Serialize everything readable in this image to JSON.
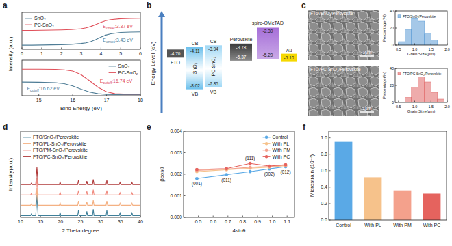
{
  "panel_labels": [
    "a",
    "b",
    "c",
    "d",
    "e",
    "f"
  ],
  "chart_data": [
    {
      "type": "line",
      "y_label": "Intensity (a.u.)",
      "xlim": [
        0,
        6
      ],
      "xticks": [
        0,
        1,
        2,
        3,
        4,
        5,
        6
      ],
      "ylim": [
        0,
        11
      ],
      "tick_labels": "x",
      "legend": "upper left",
      "x": [
        0,
        0.5,
        1,
        1.5,
        2,
        2.5,
        3,
        3.25,
        3.5,
        3.75,
        4,
        4.25,
        4.5,
        5,
        5.5,
        6
      ],
      "series": [
        {
          "name": "SnO₂",
          "color": "#4f7d96",
          "values": [
            1.2,
            1.2,
            1.25,
            1.3,
            1.35,
            1.45,
            1.7,
            1.9,
            2.3,
            2.9,
            3.6,
            4.2,
            4.6,
            5.0,
            5.1,
            5.15
          ]
        },
        {
          "name": "PC-SnO₂",
          "color": "#e0505a",
          "values": [
            5.6,
            5.6,
            5.65,
            5.7,
            5.75,
            5.85,
            6.1,
            6.35,
            6.8,
            7.4,
            8.0,
            8.5,
            8.8,
            9.1,
            9.2,
            9.25
          ]
        }
      ],
      "annotations": [
        {
          "main": "E",
          "sub": "onset",
          "rest": ":3.37 eV",
          "color": "#e0505a"
        },
        {
          "main": "E",
          "sub": "onset",
          "rest": ":3.43 eV",
          "color": "#4f7d96"
        }
      ]
    },
    {
      "type": "line",
      "x_label": "Bind Energy (eV)",
      "xlim": [
        14.5,
        18
      ],
      "xticks": [
        15,
        16,
        17,
        18
      ],
      "ylim": [
        0,
        11
      ],
      "tick_labels": "x",
      "legend": "upper right",
      "x": [
        14.5,
        15,
        15.5,
        15.75,
        16,
        16.25,
        16.5,
        16.75,
        17,
        17.25,
        17.5,
        18
      ],
      "series": [
        {
          "name": "SnO₂",
          "color": "#4f7d96",
          "values": [
            4.2,
            4.15,
            4.0,
            3.7,
            3.0,
            2.0,
            1.1,
            0.6,
            0.4,
            0.35,
            0.35,
            0.35
          ]
        },
        {
          "name": "PC-SnO₂",
          "color": "#e0505a",
          "values": [
            8.2,
            8.2,
            8.15,
            8.0,
            7.6,
            6.5,
            4.6,
            2.6,
            1.2,
            0.6,
            0.5,
            0.5
          ]
        }
      ],
      "annotations": [
        {
          "main": "E",
          "sub": "cutoff",
          "rest": ":16.74 eV",
          "color": "#e0505a"
        },
        {
          "main": "E",
          "sub": "cutoff",
          "rest": ":16.62 eV",
          "color": "#4f7d96"
        }
      ]
    },
    {
      "type": "histogram",
      "title": "FTO/SnO₂/Perovskite",
      "x_label": "Grain Size(μm)",
      "y_label": "Percentage(%)",
      "color": "#5b9bd5",
      "bins": [
        0.5,
        0.7,
        0.9,
        1.1,
        1.3,
        1.5,
        1.7
      ],
      "values": [
        4,
        18,
        31,
        28,
        13,
        6
      ],
      "xlim": [
        0.4,
        2.0
      ],
      "xticks": [
        0.5,
        {
          "value": 1,
          "label": "1.0"
        },
        1.5,
        {
          "value": 2,
          "label": "2.0"
        }
      ],
      "ylim": [
        0,
        40
      ],
      "yticks": [
        0,
        20,
        40
      ]
    },
    {
      "type": "histogram",
      "title": "FTO/PC-SnO₂/Perovskite",
      "x_label": "Grain Size(μm)",
      "y_label": "Percentage(%)",
      "color": "#e06666",
      "bins": [
        0.7,
        0.9,
        1.1,
        1.3,
        1.5,
        1.7,
        1.9
      ],
      "values": [
        6,
        18,
        30,
        24,
        12,
        4
      ],
      "xlim": [
        0.4,
        2.0
      ],
      "xticks": [
        0.5,
        {
          "value": 1,
          "label": "1.0"
        },
        1.5,
        {
          "value": 2,
          "label": "2.0"
        }
      ],
      "ylim": [
        0,
        40
      ],
      "yticks": [
        0,
        20,
        40
      ]
    },
    {
      "type": "line",
      "x_label": "2 Theta degree",
      "y_label": "Intensity(a.u.)",
      "xlim": [
        10,
        40
      ],
      "xticks": [
        10,
        15,
        20,
        25,
        30,
        35,
        40
      ],
      "ylim": [
        0,
        100
      ],
      "tick_labels": "x",
      "legend": "upper left",
      "x": [
        10,
        12.5,
        12.7,
        12.9,
        13.8,
        14.1,
        14.4,
        19.7,
        19.9,
        20.1,
        24.3,
        24.5,
        24.7,
        26.4,
        26.6,
        26.8,
        28,
        28.2,
        28.4,
        31.4,
        31.6,
        31.8,
        34.7,
        34.9,
        35.1,
        37.7,
        37.9,
        38.1,
        40
      ],
      "series": [
        {
          "name": "FTO/SnO₂/Perovskite",
          "color": "#3f7f99",
          "values": [
            2,
            2,
            3.8,
            2,
            2,
            26,
            2,
            2,
            5.6,
            2,
            2,
            8,
            2,
            2,
            6.8,
            2,
            2,
            9.2,
            2,
            2,
            8,
            2,
            2,
            5,
            2,
            2,
            5,
            2,
            2
          ]
        },
        {
          "name": "FTO/PL-SnO₂/Perovskite",
          "color": "#f4b183",
          "values": [
            14,
            14,
            15.5,
            14,
            14,
            34,
            14,
            14,
            17,
            14,
            14,
            19,
            14,
            14,
            18,
            14,
            14,
            20,
            14,
            14,
            19,
            14,
            14,
            16.5,
            14,
            14,
            16.5,
            14,
            14
          ]
        },
        {
          "name": "FTO/PM-SnO₂/Perovskite",
          "color": "#f08a7e",
          "values": [
            26,
            26,
            27.5,
            26,
            26,
            46,
            26,
            26,
            29,
            26,
            26,
            31,
            26,
            26,
            30,
            26,
            26,
            32,
            26,
            26,
            31,
            26,
            26,
            28.5,
            26,
            26,
            28.5,
            26,
            26
          ]
        },
        {
          "name": "FTO/PC-SnO₂/Perovskite",
          "color": "#b03a3a",
          "values": [
            38,
            38,
            39.5,
            38,
            38,
            58,
            38,
            38,
            41,
            38,
            38,
            43,
            38,
            38,
            42,
            38,
            38,
            44,
            38,
            38,
            43,
            38,
            38,
            40.5,
            38,
            38,
            40.5,
            38,
            38
          ]
        }
      ]
    },
    {
      "type": "scatter",
      "x_label": "4sinθ",
      "y_label": "βcosθ",
      "xlim": [
        0.4,
        1.15
      ],
      "xticks": [
        0.5,
        0.6,
        0.7,
        0.8,
        0.9,
        {
          "value": 1,
          "label": "1.0"
        },
        1.1
      ],
      "ylim": [
        0,
        0.004
      ],
      "yticks": [
        {
          "value": 0,
          "label": "0.000"
        },
        0.001,
        0.002,
        0.003,
        0.004
      ],
      "legend": "upper right",
      "marker": "circle",
      "line_style": "solid",
      "x": [
        0.49,
        0.69,
        0.85,
        0.98,
        1.09
      ],
      "point_labels": [
        "(001)",
        "(011)",
        "(111)",
        "(002)",
        "(012)"
      ],
      "series": [
        {
          "name": "Control",
          "color": "#5aa9e6",
          "values": [
            0.0018,
            0.00198,
            0.00212,
            0.00225,
            0.00235
          ]
        },
        {
          "name": "With PL",
          "color": "#f6c28b",
          "values": [
            0.00212,
            0.00221,
            0.00228,
            0.00233,
            0.0024
          ]
        },
        {
          "name": "With PM",
          "color": "#f4a18c",
          "values": [
            0.00218,
            0.00224,
            0.00232,
            0.00236,
            0.00242
          ]
        },
        {
          "name": "With PC",
          "color": "#e5635e",
          "values": [
            0.00222,
            0.00226,
            0.0025,
            0.00238,
            0.00244
          ]
        }
      ]
    },
    {
      "type": "bar",
      "y_label": "Microstrain (10⁻³)",
      "categories": [
        "Control",
        "With PL",
        "With PM",
        "With PC"
      ],
      "values": [
        0.95,
        0.52,
        0.36,
        0.32
      ],
      "colors": [
        "#5aa9e6",
        "#f6c28b",
        "#f4a18c",
        "#e5635e"
      ],
      "ylim": [
        0,
        1.08
      ],
      "yticks": [
        {
          "value": 0,
          "label": "0.0"
        },
        0.2,
        0.4,
        0.6,
        0.8,
        {
          "value": 1,
          "label": "1.0"
        }
      ]
    }
  ],
  "energy_diagram": {
    "y_label": "Energy Level (eV)",
    "ylim": [
      -10.2,
      -1.0
    ],
    "electrode_left": {
      "name": "FTO",
      "level": {
        "value": -4.7,
        "label": "-4.70"
      },
      "color": "#555555"
    },
    "layers": [
      {
        "name": "SnO₂",
        "cb": {
          "value": -4.11,
          "label": "-4.11"
        },
        "vb": {
          "value": -8.02,
          "label": "-8.02"
        },
        "cb_label": "CB",
        "vb_label": "VB",
        "color": "#6cc0ec"
      },
      {
        "name": "PC-SnO₂",
        "cb": {
          "value": -3.94,
          "label": "-3.94"
        },
        "vb": {
          "value": -7.85,
          "label": "-7.85"
        },
        "cb_label": "CB",
        "vb_label": "VB",
        "color": "#9fd8f5"
      },
      {
        "name": "Perovskite",
        "cb": {
          "value": -3.78,
          "label": "-3.78"
        },
        "vb": {
          "value": -5.37,
          "label": "-5.37"
        },
        "color": "#3a3a3a"
      },
      {
        "name": "spiro-OMeTAD",
        "cb": {
          "value": -2.3,
          "label": "-2.30"
        },
        "vb": {
          "value": -5.2,
          "label": "-5.20"
        },
        "color": "#a66fd8"
      }
    ],
    "electrode_right": {
      "name": "Au",
      "level": {
        "value": -5.1,
        "label": "-5.10"
      },
      "color": "#f5d800"
    }
  },
  "sem_images": [
    {
      "label": "FTO/SnO₂/Perovskite",
      "scale_bar": "1μm"
    },
    {
      "label": "FTO/PC-SnO₂/Perovskite",
      "scale_bar": "1μm"
    }
  ]
}
